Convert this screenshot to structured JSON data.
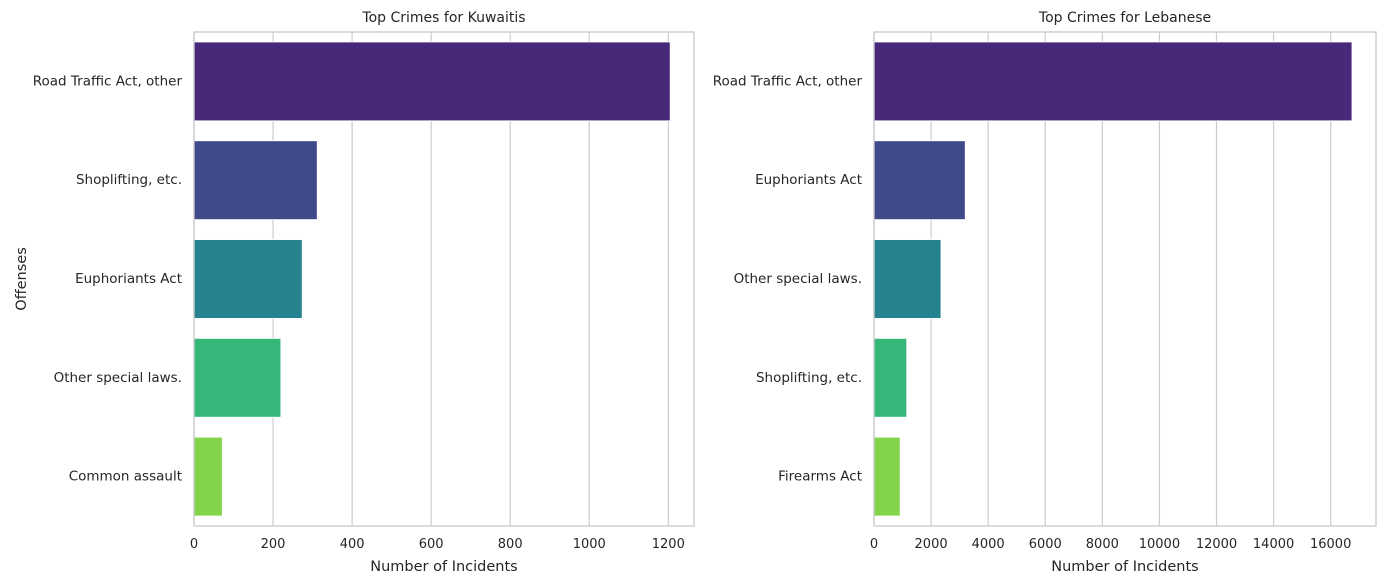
{
  "chart_data": [
    {
      "type": "bar",
      "orientation": "horizontal",
      "title": "Top Crimes for Kuwaitis",
      "xlabel": "Number of Incidents",
      "ylabel": "Offenses",
      "categories": [
        "Road Traffic Act, other",
        "Shoplifting, etc.",
        "Euphoriants Act",
        "Other special laws.",
        "Common assault"
      ],
      "values": [
        1205,
        312,
        274,
        220,
        72
      ],
      "colors": [
        "#482878",
        "#3e4a89",
        "#26828e",
        "#35b779",
        "#84d44b"
      ],
      "xlim": [
        0,
        1265
      ],
      "xticks": [
        0,
        200,
        400,
        600,
        800,
        1000,
        1200
      ],
      "grid": true
    },
    {
      "type": "bar",
      "orientation": "horizontal",
      "title": "Top Crimes for Lebanese",
      "xlabel": "Number of Incidents",
      "ylabel": "",
      "categories": [
        "Road Traffic Act, other",
        "Euphoriants Act",
        "Other special laws.",
        "Shoplifting, etc.",
        "Firearms Act"
      ],
      "values": [
        16750,
        3200,
        2350,
        1150,
        920
      ],
      "colors": [
        "#482878",
        "#3e4a89",
        "#26828e",
        "#35b779",
        "#84d44b"
      ],
      "xlim": [
        0,
        17588
      ],
      "xticks": [
        0,
        2000,
        4000,
        6000,
        8000,
        10000,
        12000,
        14000,
        16000
      ],
      "grid": true
    }
  ]
}
